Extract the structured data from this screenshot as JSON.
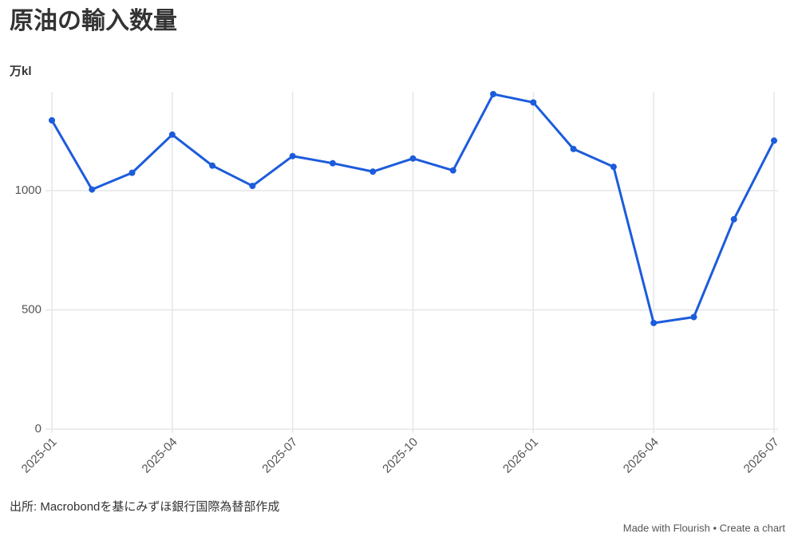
{
  "chart_data": {
    "type": "line",
    "title": "原油の輸入数量",
    "y_axis_label": "万kl",
    "categories": [
      "2025-01",
      null,
      null,
      "2025-04",
      null,
      null,
      "2025-07",
      null,
      null,
      "2025-10",
      null,
      null,
      "2026-01",
      null,
      null,
      "2026-04",
      null,
      null,
      "2026-07"
    ],
    "series": [
      {
        "color": "#1c5cdb",
        "values": [
          1295,
          1005,
          1075,
          1235,
          1105,
          1020,
          1145,
          1115,
          1080,
          1135,
          1085,
          1405,
          1370,
          1175,
          1100,
          445,
          470,
          880,
          1210
        ]
      }
    ],
    "ylim": [
      0,
      1415
    ],
    "yticks": [
      0,
      500,
      1000
    ],
    "grid": true,
    "source": "出所: Macrobondを基にみずほ銀行国際為替部作成",
    "footer": "Made with Flourish • Create a chart"
  }
}
